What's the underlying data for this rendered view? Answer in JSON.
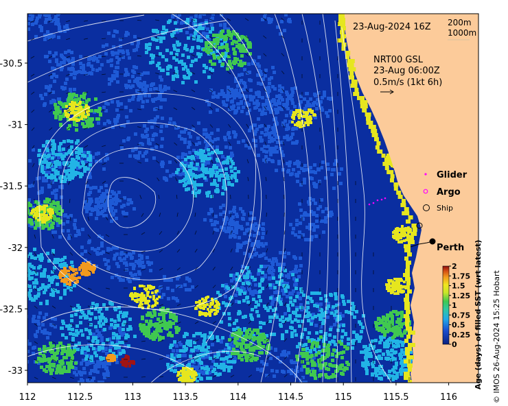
{
  "map": {
    "timestamp": "23-Aug-2024 16Z",
    "isobath_labels": [
      "200m",
      "1000m"
    ],
    "current_product": "NRT00 GSL",
    "current_time": "23-Aug 06:00Z",
    "current_scale": "0.5m/s (1kt 6h)",
    "x_ticks": [
      "112",
      "112.5",
      "113",
      "113.5",
      "114",
      "114.5",
      "115",
      "115.5",
      "116"
    ],
    "y_ticks": [
      "-30.5",
      "-31",
      "-31.5",
      "-32",
      "-32.5",
      "-33"
    ],
    "legend": {
      "glider": "Glider",
      "argo": "Argo",
      "ship": "Ship",
      "city": "Perth"
    },
    "colorbar": {
      "ticks": [
        "2",
        "1.75",
        "1.5",
        "1.25",
        "1",
        "0.75",
        "0.5",
        "0.25",
        "0"
      ],
      "label": "Age (days) of filled SST (wrt latest)"
    },
    "credit": "© IMOS 26-Aug-2024 15:25 Hobart",
    "colors": {
      "land": "#fccb9a",
      "ocean_deep": "#0a2ea0",
      "ocean_mid": "#1e5ad6",
      "cyan": "#22b4e6",
      "green": "#40c850",
      "yellow": "#e6e61e",
      "orange": "#f29a1e",
      "red": "#a01414",
      "glider": "#ff00ff"
    }
  }
}
